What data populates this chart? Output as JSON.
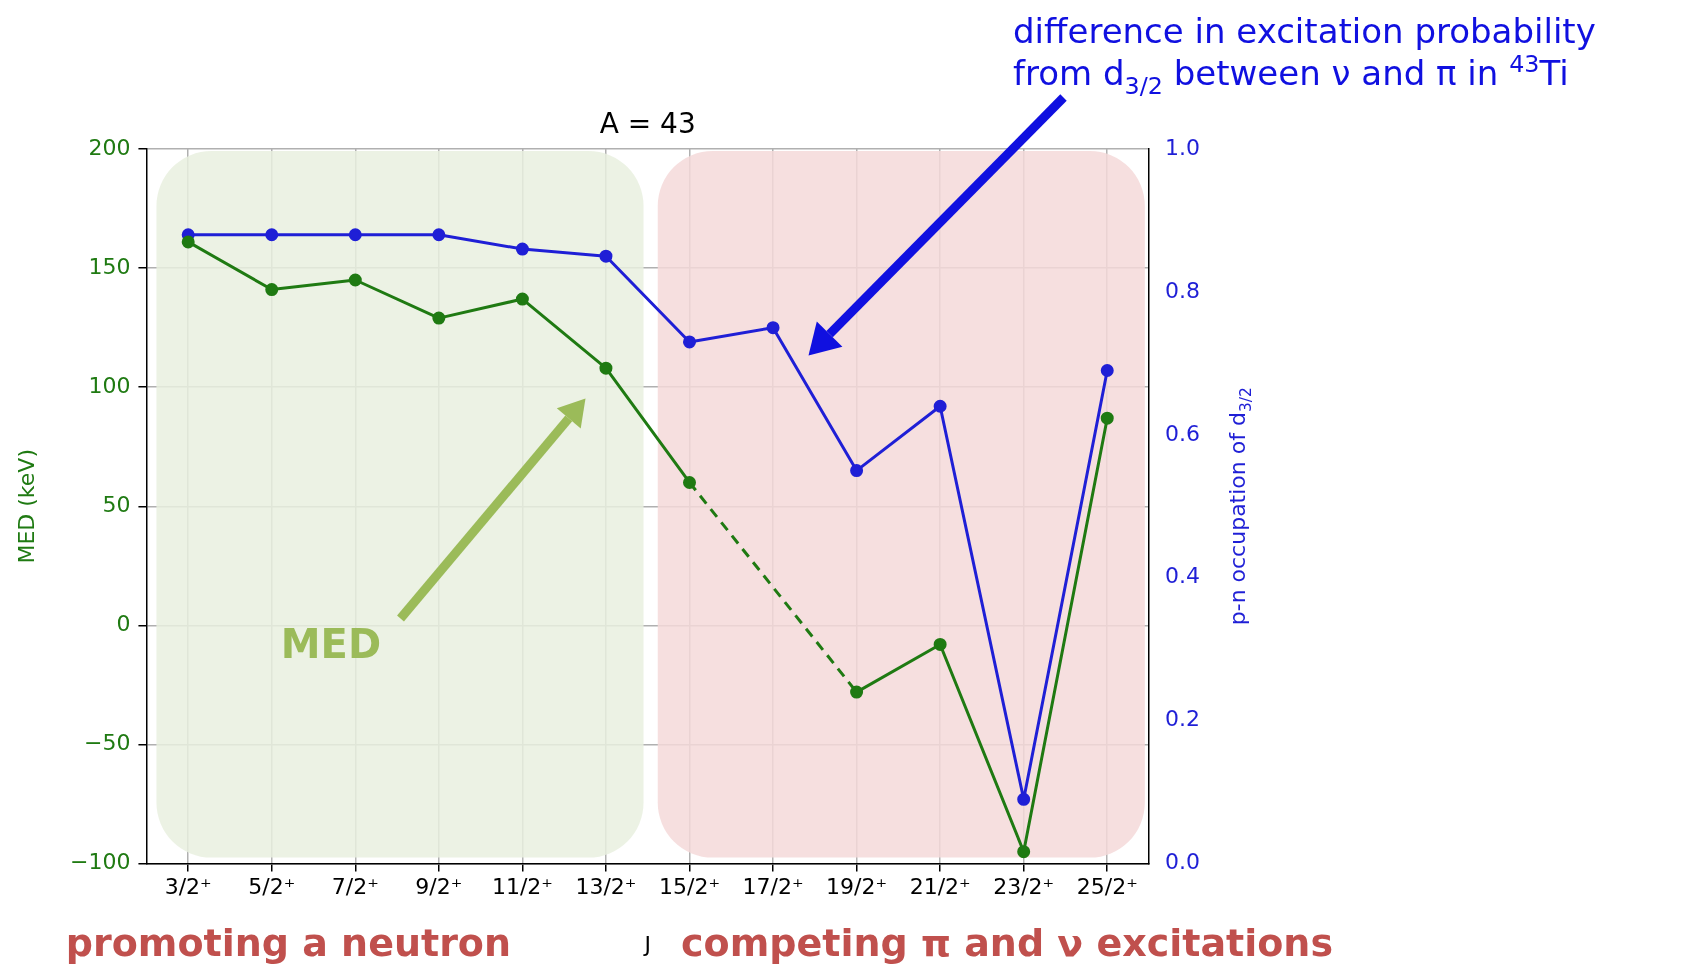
{
  "chart_data": {
    "type": "line",
    "title": "A = 43",
    "xlabel": "J",
    "ylabel": "MED (keV)",
    "y2label": "p-n occupation of d$_{3/2}$",
    "categories": [
      "3/2⁺",
      "5/2⁺",
      "7/2⁺",
      "9/2⁺",
      "11/2⁺",
      "13/2⁺",
      "15/2⁺",
      "17/2⁺",
      "19/2⁺",
      "21/2⁺",
      "23/2⁺",
      "25/2⁺"
    ],
    "series": [
      {
        "color": "#1f7a12",
        "values": [
          161,
          141,
          145,
          129,
          137,
          108,
          60,
          null,
          -28,
          -8,
          -95,
          87
        ]
      },
      {
        "color": "#1f1fd6",
        "axis": "y2",
        "values": [
          0.88,
          0.88,
          0.88,
          0.88,
          0.86,
          0.85,
          0.73,
          0.75,
          0.55,
          0.64,
          0.09,
          0.69
        ]
      }
    ],
    "ylim": [
      -100,
      200
    ],
    "yticks": [
      {
        "value": -100,
        "label": "−100"
      },
      {
        "value": -50,
        "label": "−50"
      },
      0,
      50,
      100,
      150,
      200
    ],
    "y2lim": [
      0,
      1
    ],
    "y2ticks": [
      {
        "value": 0,
        "label": "0.0"
      },
      0.2,
      0.4,
      0.6,
      0.8,
      {
        "value": 1,
        "label": "1.0"
      }
    ],
    "grid": true,
    "marker": "circle",
    "line_style": "solid",
    "bands": [
      {
        "axis": "x",
        "from": "3/2⁺",
        "to": "13/2⁺",
        "label": "promoting a neutron",
        "color": "#e9f0df"
      },
      {
        "axis": "x",
        "from": "15/2⁺",
        "to": "25/2⁺",
        "label": "competing π and ν excitations",
        "color": "#f5d9d9"
      }
    ],
    "annotations": [
      "MED",
      "difference in excitation probability\nfrom d$_{3/2}$ between ν and π in $^{43}$Ti"
    ]
  }
}
